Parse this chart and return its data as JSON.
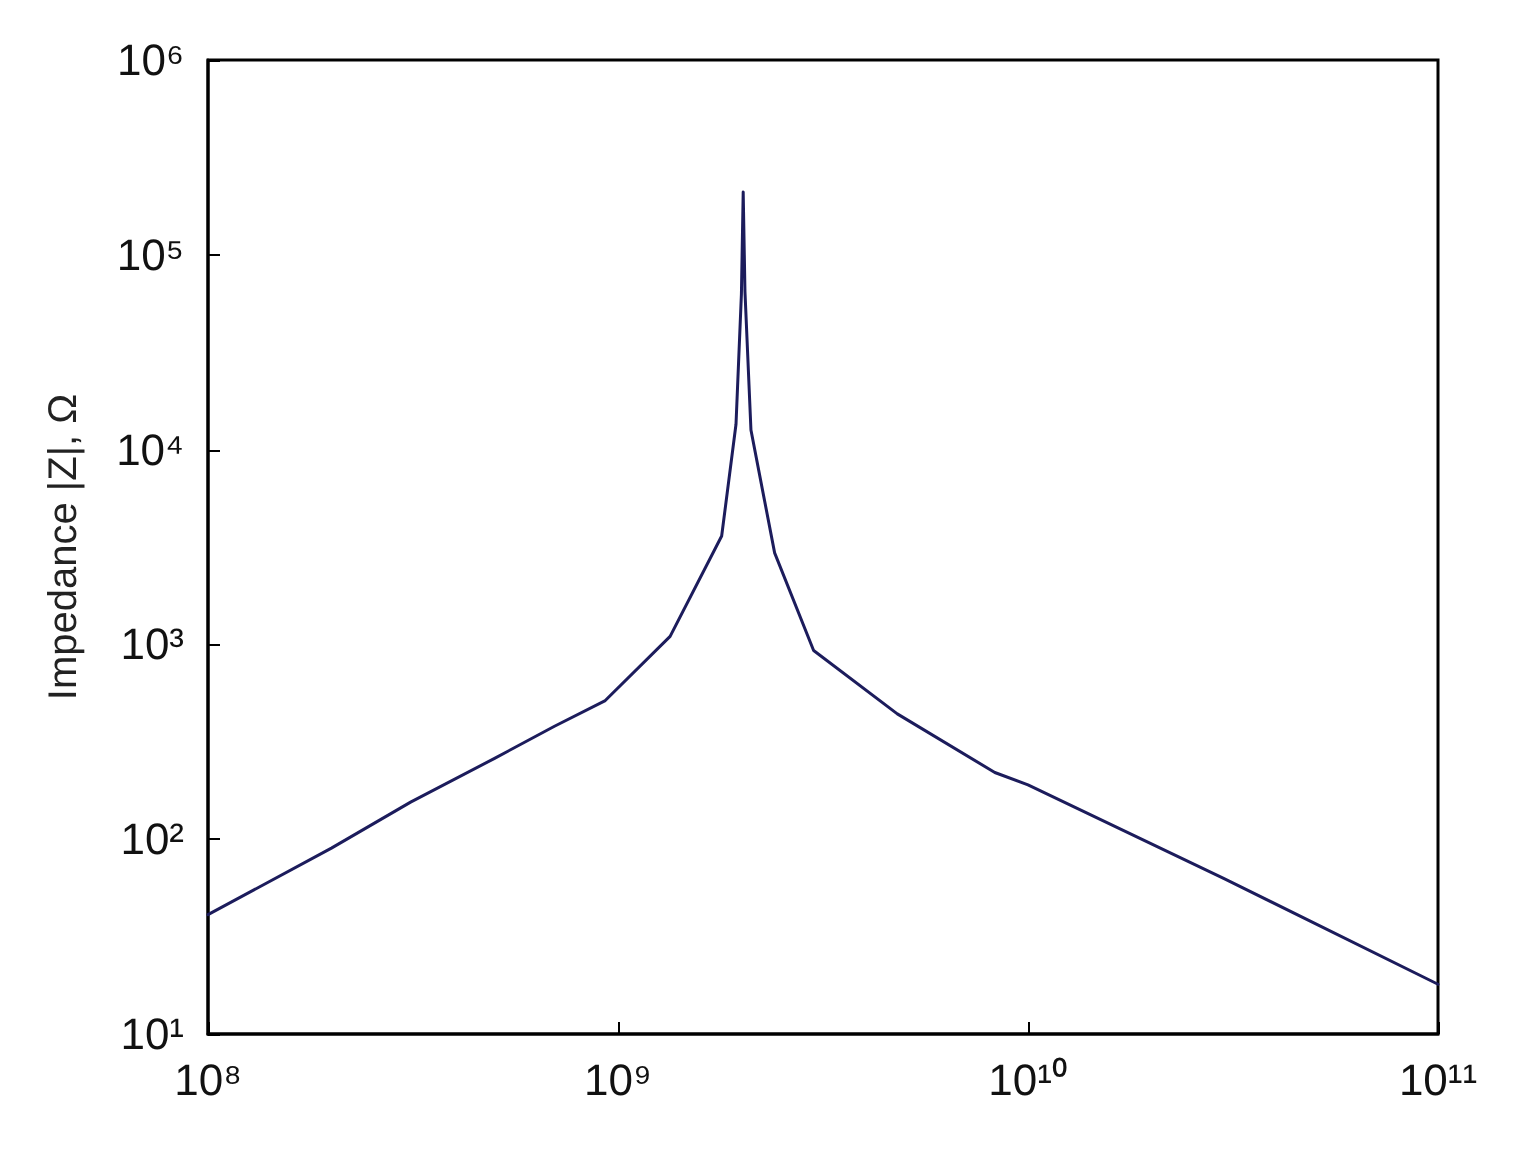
{
  "chart_data": {
    "type": "line",
    "ylabel": "Impedance |Z|, Ω",
    "log": "xy",
    "grid": false,
    "marker": "none",
    "line_style": "solid",
    "xlim": [
      100000000,
      100000000000
    ],
    "ylim": [
      10,
      1000000
    ],
    "xticks": [
      {
        "value": 100000000,
        "label": "10⁸"
      },
      {
        "value": 1000000000,
        "label": "10⁹"
      },
      {
        "value": 10000000000,
        "label": "10¹⁰"
      },
      {
        "value": 100000000000,
        "label": "10¹¹"
      }
    ],
    "yticks": [
      {
        "value": 10,
        "label": "10¹"
      },
      {
        "value": 100,
        "label": "10²"
      },
      {
        "value": 1000,
        "label": "10³"
      },
      {
        "value": 10000,
        "label": "10⁴"
      },
      {
        "value": 100000,
        "label": "10⁵"
      },
      {
        "value": 1000000,
        "label": "10⁶"
      }
    ],
    "series": [
      {
        "color": "#1c1c5c",
        "x": [
          100000000,
          200000000,
          312000000,
          500000000,
          700000000,
          931000000,
          1340000000,
          1790000000,
          1940000000,
          2000000000,
          2020000000,
          2040000000,
          2110000000,
          2410000000,
          3000000000,
          4800000000,
          8300000000,
          10000000000,
          30000000000,
          100000000000
        ],
        "values": [
          41,
          90,
          155,
          260,
          380,
          515,
          1100,
          3600,
          13500,
          63000,
          210000,
          65000,
          12600,
          2950,
          930,
          440,
          220,
          190,
          63,
          18
        ]
      }
    ]
  }
}
